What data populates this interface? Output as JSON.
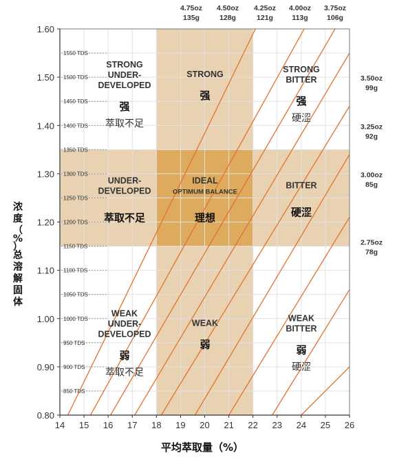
{
  "chart_data": {
    "type": "line",
    "title": "",
    "xlabel": "平均萃取量（%）",
    "ylabel": "浓度（%）总溶解固体",
    "xlim": [
      14,
      26
    ],
    "ylim": [
      0.8,
      1.6
    ],
    "x_ticks": [
      "14",
      "15",
      "16",
      "17",
      "18",
      "19",
      "20",
      "21",
      "22",
      "23",
      "24",
      "25",
      "26"
    ],
    "y_ticks": [
      "0.80",
      "0.90",
      "1.00",
      "1.10",
      "1.20",
      "1.30",
      "1.40",
      "1.50",
      "1.60"
    ],
    "tds_labels": [
      "850 TDS",
      "900 TDS",
      "950 TDS",
      "1000 TDS",
      "1050 TDS",
      "1100 TDS",
      "1150 TDS",
      "1200 TDS",
      "1250 TDS",
      "1300 TDS",
      "1350 TDS",
      "1400 TDS",
      "1450 TDS",
      "1500 TDS",
      "1550 TDS"
    ],
    "tds_values": [
      0.85,
      0.9,
      0.95,
      1.0,
      1.05,
      1.1,
      1.15,
      1.2,
      1.25,
      1.3,
      1.35,
      1.4,
      1.45,
      1.5,
      1.55
    ],
    "ideal_band_x": [
      18,
      22
    ],
    "ideal_band_y": [
      1.15,
      1.35
    ],
    "brew_ratio_lines": [
      {
        "oz": "4.75oz",
        "g": "135g",
        "points": [
          [
            14.33,
            0.8
          ],
          [
            22.1,
            1.6
          ]
        ]
      },
      {
        "oz": "4.50oz",
        "g": "128g",
        "points": [
          [
            15.27,
            0.8
          ],
          [
            24.12,
            1.6
          ]
        ]
      },
      {
        "oz": "4.25oz",
        "g": "121g",
        "points": [
          [
            16.1,
            0.8
          ],
          [
            25.4,
            1.6
          ]
        ]
      },
      {
        "oz": "4.00oz",
        "g": "113g",
        "points": [
          [
            17.1,
            0.8
          ],
          [
            26.0,
            1.55
          ]
        ]
      },
      {
        "oz": "3.75oz",
        "g": "106g",
        "points": [
          [
            18.2,
            0.8
          ],
          [
            26.0,
            1.44
          ]
        ]
      },
      {
        "oz": "3.50oz",
        "g": "99g",
        "points": [
          [
            19.6,
            0.8
          ],
          [
            26.0,
            1.34
          ]
        ]
      },
      {
        "oz": "3.25oz",
        "g": "92g",
        "points": [
          [
            21.0,
            0.8
          ],
          [
            26.0,
            1.21
          ]
        ]
      },
      {
        "oz": "3.00oz",
        "g": "85g",
        "points": [
          [
            22.8,
            0.8
          ],
          [
            26.0,
            1.06
          ]
        ]
      },
      {
        "oz": "2.75oz",
        "g": "78g",
        "points": [
          [
            24.0,
            0.8
          ],
          [
            26.0,
            0.9
          ]
        ]
      }
    ],
    "zones": [
      {
        "id": "strong-underdeveloped",
        "en": [
          "STRONG",
          "UNDER-",
          "DEVELOPED"
        ],
        "cn_bold": "强",
        "cn": "萃取不足"
      },
      {
        "id": "strong",
        "en": [
          "STRONG"
        ],
        "cn_bold": "强",
        "cn": ""
      },
      {
        "id": "strong-bitter",
        "en": [
          "STRONG",
          "BITTER"
        ],
        "cn_bold": "强",
        "cn": "硬涩"
      },
      {
        "id": "underdeveloped",
        "en": [
          "UNDER-",
          "DEVELOPED"
        ],
        "cn_bold": "萃取不足",
        "cn": ""
      },
      {
        "id": "ideal",
        "en": [
          "IDEAL",
          "OPTIMUM BALANCE"
        ],
        "cn_bold": "理想",
        "cn": ""
      },
      {
        "id": "bitter",
        "en": [
          "BITTER"
        ],
        "cn_bold": "硬涩",
        "cn": ""
      },
      {
        "id": "weak-underdeveloped",
        "en": [
          "WEAK",
          "UNDER-",
          "DEVELOPED"
        ],
        "cn_bold": "弱",
        "cn": "萃取不足"
      },
      {
        "id": "weak",
        "en": [
          "WEAK"
        ],
        "cn_bold": "弱",
        "cn": ""
      },
      {
        "id": "weak-bitter",
        "en": [
          "WEAK",
          "BITTER"
        ],
        "cn_bold": "弱",
        "cn": "硬涩"
      }
    ],
    "colors": {
      "band": "#e9d2b1",
      "ideal": "#deab5e",
      "grid": "#e2e2e2",
      "diag": "#e2712f",
      "tds_dash": "#888888",
      "ideal_cn": "#ee1010"
    },
    "grid": true
  }
}
